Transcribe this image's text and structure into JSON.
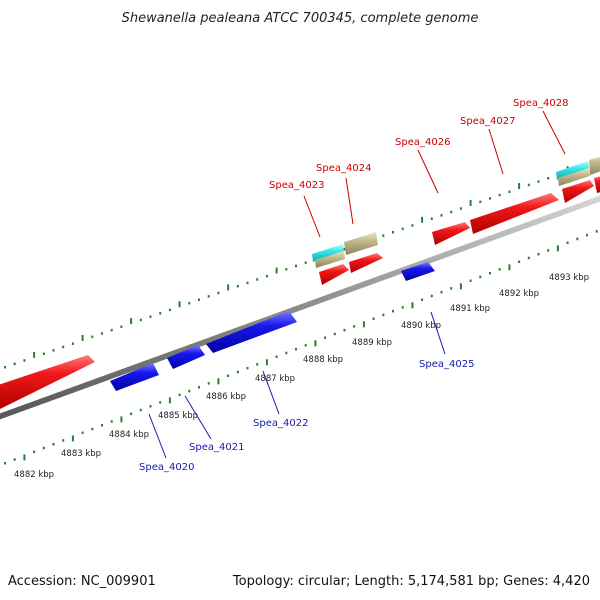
{
  "title": "Shewanella pealeana ATCC 700345, complete genome",
  "footer": {
    "accession": "Accession: NC_009901",
    "summary": "Topology: circular; Length: 5,174,581 bp; Genes: 4,420"
  },
  "colors": {
    "forward_gene": "#ee1111",
    "reverse_gene": "#1515dd",
    "cog_cyan": "#33e6ee",
    "cog_tan": "#c2b98a",
    "backbone": "#8c8c8c",
    "ticks": "#2e7d2e",
    "forward_label": "#cc0000",
    "reverse_label": "#1a1aaa"
  },
  "scale_labels": [
    "4882 kbp",
    "4883 kbp",
    "4884 kbp",
    "4885 kbp",
    "4886 kbp",
    "4887 kbp",
    "4888 kbp",
    "4889 kbp",
    "4890 kbp",
    "4891 kbp",
    "4892 kbp",
    "4893 kbp"
  ],
  "gene_labels": {
    "spea_4020": "Spea_4020",
    "spea_4021": "Spea_4021",
    "spea_4022": "Spea_4022",
    "spea_4023": "Spea_4023",
    "spea_4024": "Spea_4024",
    "spea_4025": "Spea_4025",
    "spea_4026": "Spea_4026",
    "spea_4027": "Spea_4027",
    "spea_4028": "Spea_4028"
  }
}
